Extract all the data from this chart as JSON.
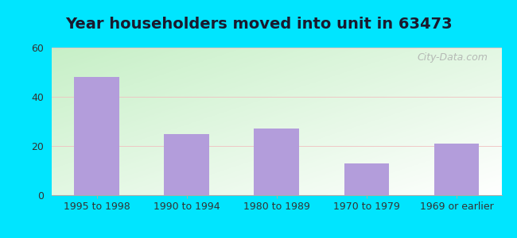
{
  "title": "Year householders moved into unit in 63473",
  "categories": [
    "1995 to 1998",
    "1990 to 1994",
    "1980 to 1989",
    "1970 to 1979",
    "1969 or earlier"
  ],
  "values": [
    48,
    25,
    27,
    13,
    21
  ],
  "bar_color": "#b39ddb",
  "ylim": [
    0,
    60
  ],
  "yticks": [
    0,
    20,
    40,
    60
  ],
  "background_outer": "#00e5ff",
  "grid_color": "#f0c0c0",
  "title_fontsize": 14,
  "tick_fontsize": 9,
  "watermark": "City-Data.com"
}
